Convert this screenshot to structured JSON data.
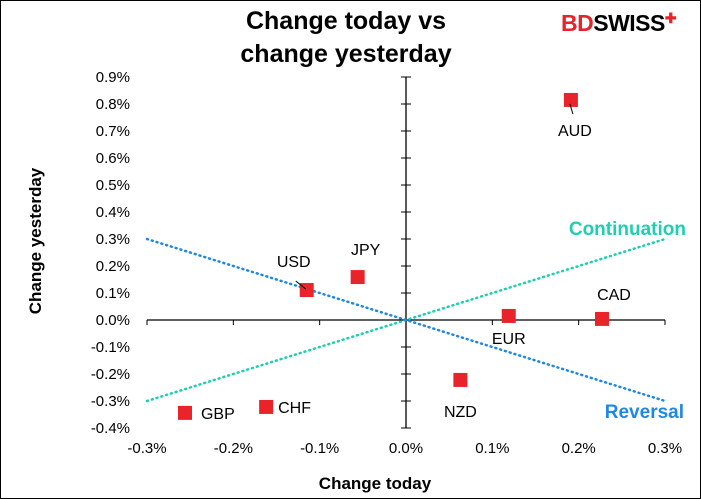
{
  "chart_data": {
    "type": "scatter",
    "title": "Change today vs change yesterday",
    "title_lines": [
      "Change today vs",
      "change yesterday"
    ],
    "xlabel": "Change today",
    "ylabel": "Change yesterday",
    "xlim": [
      -0.3,
      0.3
    ],
    "ylim": [
      -0.4,
      0.9
    ],
    "x_ticks": [
      "-0.3%",
      "-0.2%",
      "-0.1%",
      "0.0%",
      "0.1%",
      "0.2%",
      "0.3%"
    ],
    "y_ticks": [
      "0.9%",
      "0.8%",
      "0.7%",
      "0.6%",
      "0.5%",
      "0.4%",
      "0.3%",
      "0.2%",
      "0.1%",
      "0.0%",
      "-0.1%",
      "-0.2%",
      "-0.3%",
      "-0.4%"
    ],
    "grid": false,
    "points": [
      {
        "label": "AUD",
        "x": 0.191,
        "y": 0.815
      },
      {
        "label": "CAD",
        "x": 0.227,
        "y": 0.004
      },
      {
        "label": "EUR",
        "x": 0.119,
        "y": 0.015
      },
      {
        "label": "NZD",
        "x": 0.063,
        "y": -0.222
      },
      {
        "label": "JPY",
        "x": -0.056,
        "y": 0.159
      },
      {
        "label": "USD",
        "x": -0.115,
        "y": 0.111
      },
      {
        "label": "CHF",
        "x": -0.162,
        "y": -0.322
      },
      {
        "label": "GBP",
        "x": -0.256,
        "y": -0.344
      }
    ],
    "lines": [
      {
        "name": "Continuation",
        "color": "#1ecfb0",
        "x": [
          -0.3,
          0.3
        ],
        "y": [
          -0.3,
          0.3
        ]
      },
      {
        "name": "Reversal",
        "color": "#1e88e5",
        "x": [
          -0.3,
          0.3
        ],
        "y": [
          0.3,
          -0.3
        ]
      }
    ],
    "marker_color": "#e8232a"
  },
  "logo": {
    "text": "BDSWISS",
    "part1": "BD",
    "part2": "SWISS"
  }
}
